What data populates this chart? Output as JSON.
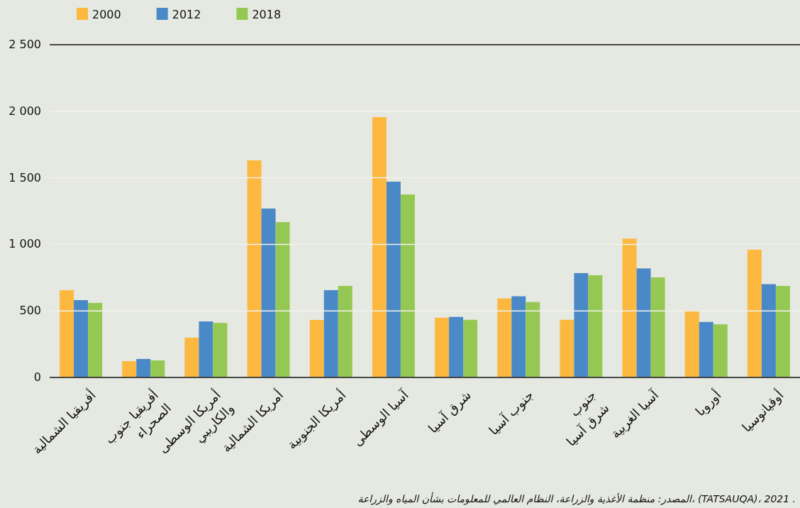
{
  "chart_data": {
    "type": "bar",
    "categories": [
      "أفريقيا الشمالية",
      "أفريقيا جنوب الصحراء",
      "أمريكا الوسطى والكاريبي",
      "أمريكا الشمالية",
      "أمريكا الجنوبية",
      "آسيا الوسطى",
      "شرق آسيا",
      "جنوب آسيا",
      "جنوب شرق آسيا",
      "آسيا الغربية",
      "أوروبا",
      "أوقيانوسيا"
    ],
    "series": [
      {
        "name": "2000",
        "color": "#fdb840",
        "values": [
          656,
          123,
          299,
          1631,
          432,
          1956,
          449,
          594,
          433,
          1043,
          503,
          960
        ]
      },
      {
        "name": "2012",
        "color": "#4a89c8",
        "values": [
          581,
          139,
          421,
          1269,
          656,
          1471,
          455,
          610,
          784,
          819,
          417,
          701
        ]
      },
      {
        "name": "2018",
        "color": "#95c853",
        "values": [
          560,
          128,
          410,
          1167,
          688,
          1375,
          433,
          567,
          768,
          752,
          399,
          688
        ]
      }
    ],
    "ylim": [
      0,
      2500
    ],
    "yticks": [
      {
        "value": 0,
        "label": "0"
      },
      {
        "value": 500,
        "label": "500"
      },
      {
        "value": 1000,
        "label": "1 000"
      },
      {
        "value": 1500,
        "label": "1 500"
      },
      {
        "value": 2000,
        "label": "2 000"
      },
      {
        "value": 2500,
        "label": "2 500"
      }
    ],
    "grid": "y",
    "legend": "top left",
    "annotations": [
      "المصدر: منظمة الأغذية والزراعة، النظام العالمي للمعلومات بشأن المياه والزراعة، (TATSAUQA)، 2021 ."
    ]
  }
}
